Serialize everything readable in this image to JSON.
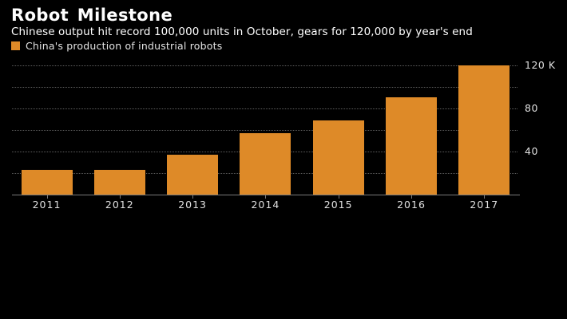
{
  "header": {
    "title": "Robot Milestone",
    "subtitle": "Chinese output hit record 100,000 units in October, gears for 120,000 by year's end"
  },
  "legend": {
    "label": "China's production of industrial robots"
  },
  "colors": {
    "background": "#000000",
    "bar": "#DE8A28",
    "grid_line": "#5E5E5E",
    "axis_line": "#7A7A7A",
    "title_text": "#FFFFFF",
    "tick_text": "#E0E0E0"
  },
  "chart_data": {
    "type": "bar",
    "title": "China's production of industrial robots",
    "categories": [
      "2011",
      "2012",
      "2013",
      "2014",
      "2015",
      "2016",
      "2017"
    ],
    "values": [
      23,
      23,
      37,
      57,
      69,
      90,
      120
    ],
    "value_unit": "thousand units (K)",
    "ylim": [
      0,
      120
    ],
    "grid_values": [
      20,
      40,
      60,
      80,
      100,
      120
    ],
    "yticks": [
      {
        "value": 40,
        "label": "40"
      },
      {
        "value": 80,
        "label": "80"
      },
      {
        "value": 120,
        "label": "120 K"
      }
    ],
    "grid": "horizontal-dotted",
    "legend_position": "top-left",
    "yaxis_side": "right",
    "background": "dark"
  }
}
